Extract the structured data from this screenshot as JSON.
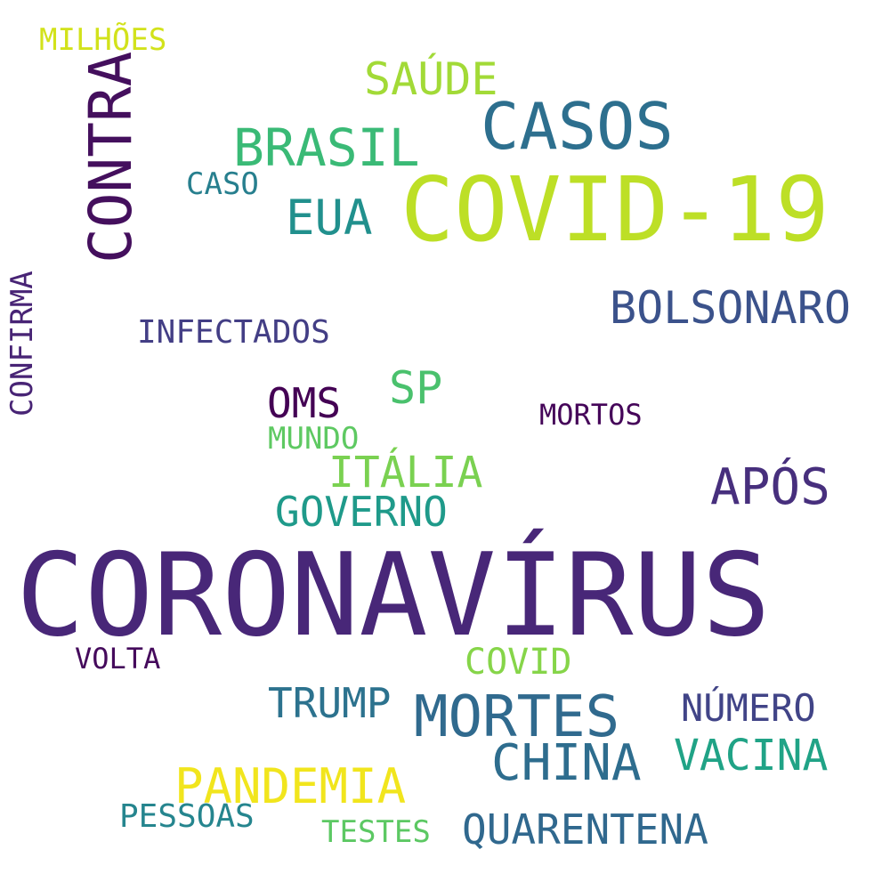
{
  "words": {
    "coronavirus": {
      "text": "CORONAVÍRUS",
      "color": "#482778"
    },
    "covid19": {
      "text": "COVID-19",
      "color": "#bddf26"
    },
    "contra": {
      "text": "CONTRA",
      "color": "#440f5d"
    },
    "casos": {
      "text": "CASOS",
      "color": "#2d6f8e"
    },
    "mortes": {
      "text": "MORTES",
      "color": "#306a8e"
    },
    "brasil": {
      "text": "BRASIL",
      "color": "#3aba76"
    },
    "apos": {
      "text": "APÓS",
      "color": "#472f7d"
    },
    "china": {
      "text": "CHINA",
      "color": "#2e6d8e"
    },
    "pandemia": {
      "text": "PANDEMIA",
      "color": "#f1e51d"
    },
    "eua": {
      "text": "EUA",
      "color": "#21908d"
    },
    "bolsonaro": {
      "text": "BOLSONARO",
      "color": "#3b528b"
    },
    "saude": {
      "text": "SAÚDE",
      "color": "#a2da37"
    },
    "sp": {
      "text": "SP",
      "color": "#4ac16d"
    },
    "vacina": {
      "text": "VACINA",
      "color": "#20a386"
    },
    "italia": {
      "text": "ITÁLIA",
      "color": "#7ad151"
    },
    "quarentena": {
      "text": "QUARENTENA",
      "color": "#30688e"
    },
    "trump": {
      "text": "TRUMP",
      "color": "#2c728e"
    },
    "governo": {
      "text": "GOVERNO",
      "color": "#1f9a8a"
    },
    "oms": {
      "text": "OMS",
      "color": "#440154"
    },
    "numero": {
      "text": "NÚMERO",
      "color": "#414487"
    },
    "covid": {
      "text": "COVID",
      "color": "#86d549"
    },
    "infectados": {
      "text": "INFECTADOS",
      "color": "#433e85"
    },
    "pessoas": {
      "text": "PESSOAS",
      "color": "#25858e"
    },
    "confirma": {
      "text": "CONFIRMA",
      "color": "#482475"
    },
    "milhoes": {
      "text": "MILHÕES",
      "color": "#d2e21b"
    },
    "caso": {
      "text": "CASO",
      "color": "#277f8e"
    },
    "mortos": {
      "text": "MORTOS",
      "color": "#450559"
    },
    "mundo": {
      "text": "MUNDO",
      "color": "#5ec962"
    },
    "volta": {
      "text": "VOLTA",
      "color": "#450a5c"
    },
    "testes": {
      "text": "TESTES",
      "color": "#5cc863"
    }
  }
}
